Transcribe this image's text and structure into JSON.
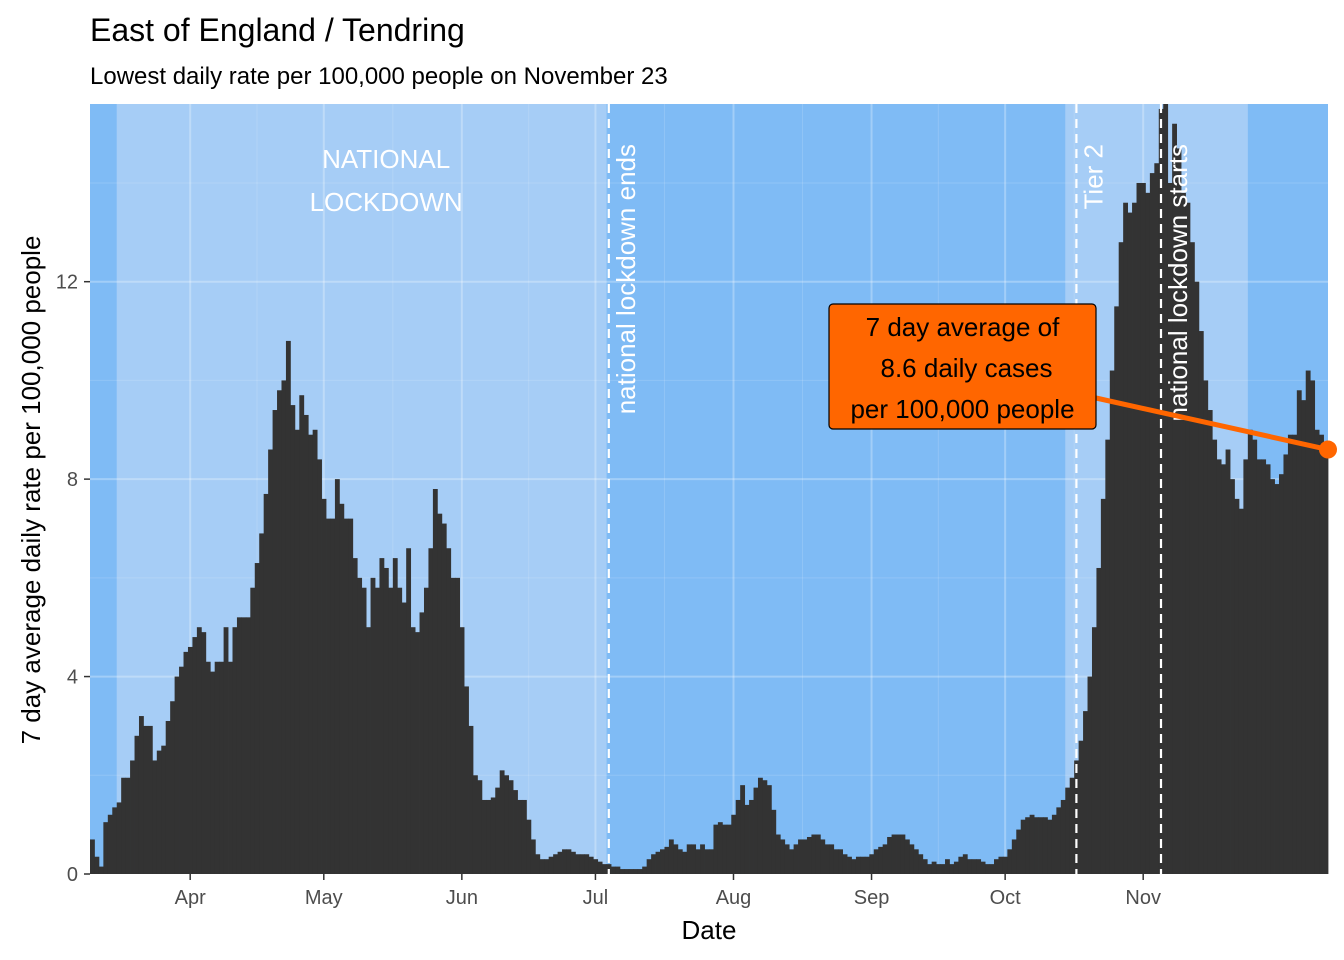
{
  "chart_data": {
    "type": "bar",
    "title": "East of England / Tendring",
    "subtitle": "Lowest daily rate per 100,000 people on November 23",
    "xlabel": "Date",
    "ylabel": "7 day average daily rate per 100,000 people",
    "x_start": "2020-03-10",
    "ylim": [
      0,
      15.6
    ],
    "y_ticks": [
      0,
      4,
      8,
      12
    ],
    "y_tick_labels": [
      "0",
      "4",
      "8",
      "12"
    ],
    "x_ticks": [
      {
        "date": "2020-04-01",
        "label": "Apr"
      },
      {
        "date": "2020-05-01",
        "label": "May"
      },
      {
        "date": "2020-06-01",
        "label": "Jun"
      },
      {
        "date": "2020-07-01",
        "label": "Jul"
      },
      {
        "date": "2020-08-01",
        "label": "Aug"
      },
      {
        "date": "2020-09-01",
        "label": "Sep"
      },
      {
        "date": "2020-10-01",
        "label": "Oct"
      },
      {
        "date": "2020-11-01",
        "label": "Nov"
      }
    ],
    "bar_color": "#333333",
    "background_color": "#7fbbf5",
    "lockdown_shade_color": "#a6cdf6",
    "shaded_periods": [
      {
        "start": "2020-03-16",
        "end": "2020-07-03"
      },
      {
        "start": "2020-10-15",
        "end": "2020-11-24"
      }
    ],
    "vlines": [
      {
        "date": "2020-07-04",
        "label": "national lockdown ends"
      },
      {
        "date": "2020-10-17",
        "label": "Tier 2"
      },
      {
        "date": "2020-11-05",
        "label": "national lockdown starts"
      }
    ],
    "region_label": {
      "lines": [
        "NATIONAL",
        "LOCKDOWN"
      ],
      "date": "2020-05-15",
      "y": 14.3
    },
    "callout": {
      "lines": [
        "7 day average of",
        "8.6 daily cases",
        "per 100,000 people"
      ],
      "point_date": "2020-11-23",
      "point_value": 8.6,
      "color": "#ff6600"
    },
    "values": [
      0.7,
      0.35,
      0.15,
      1.05,
      1.2,
      1.35,
      1.45,
      1.95,
      1.95,
      2.3,
      2.8,
      3.2,
      3.0,
      3.0,
      2.3,
      2.5,
      2.6,
      3.1,
      3.5,
      4.0,
      4.2,
      4.5,
      4.6,
      4.8,
      5.0,
      4.9,
      4.3,
      4.1,
      4.3,
      4.3,
      5.0,
      4.3,
      5.0,
      5.2,
      5.2,
      5.2,
      5.8,
      6.3,
      6.9,
      7.7,
      8.6,
      9.4,
      9.8,
      10.0,
      10.8,
      9.5,
      9.0,
      9.7,
      9.3,
      8.9,
      9.0,
      8.4,
      7.6,
      7.2,
      7.2,
      8.0,
      7.5,
      7.2,
      7.2,
      6.4,
      6.0,
      5.8,
      5.0,
      6.0,
      5.8,
      6.4,
      6.2,
      5.8,
      6.4,
      5.8,
      5.5,
      6.6,
      5.0,
      4.9,
      5.3,
      5.8,
      6.6,
      7.8,
      7.3,
      7.1,
      6.6,
      6.0,
      6.0,
      5.0,
      3.8,
      3.0,
      2.0,
      1.9,
      1.5,
      1.5,
      1.55,
      1.75,
      2.1,
      2.0,
      1.9,
      1.7,
      1.5,
      1.5,
      1.1,
      0.7,
      0.4,
      0.3,
      0.3,
      0.35,
      0.4,
      0.45,
      0.5,
      0.5,
      0.45,
      0.4,
      0.4,
      0.4,
      0.35,
      0.3,
      0.25,
      0.2,
      0.2,
      0.15,
      0.15,
      0.1,
      0.1,
      0.1,
      0.1,
      0.1,
      0.15,
      0.3,
      0.4,
      0.45,
      0.5,
      0.55,
      0.7,
      0.6,
      0.5,
      0.45,
      0.6,
      0.6,
      0.5,
      0.6,
      0.5,
      0.5,
      1.0,
      1.05,
      1.0,
      1.0,
      1.2,
      1.5,
      1.8,
      1.4,
      1.5,
      1.75,
      1.95,
      1.9,
      1.8,
      1.3,
      0.8,
      0.7,
      0.6,
      0.5,
      0.6,
      0.7,
      0.7,
      0.75,
      0.8,
      0.8,
      0.7,
      0.6,
      0.6,
      0.5,
      0.5,
      0.4,
      0.35,
      0.3,
      0.35,
      0.35,
      0.35,
      0.4,
      0.5,
      0.55,
      0.6,
      0.75,
      0.8,
      0.8,
      0.8,
      0.7,
      0.6,
      0.5,
      0.4,
      0.3,
      0.2,
      0.25,
      0.2,
      0.2,
      0.3,
      0.2,
      0.25,
      0.35,
      0.4,
      0.3,
      0.3,
      0.3,
      0.25,
      0.2,
      0.2,
      0.3,
      0.35,
      0.35,
      0.5,
      0.7,
      0.9,
      1.1,
      1.15,
      1.2,
      1.15,
      1.15,
      1.15,
      1.1,
      1.2,
      1.35,
      1.5,
      1.75,
      1.95,
      2.3,
      2.7,
      3.3,
      4.0,
      5.0,
      6.2,
      7.6,
      8.8,
      10.2,
      11.5,
      12.8,
      13.6,
      13.4,
      13.6,
      14.0,
      14.0,
      13.8,
      14.2,
      14.4,
      15.5,
      16.5,
      14.0,
      15.2,
      14.7,
      13.8,
      13.6,
      12.8,
      12.0,
      11.0,
      10.0,
      9.4,
      8.8,
      8.4,
      8.3,
      8.6,
      8.0,
      7.6,
      7.4,
      8.4,
      9.0,
      8.8,
      8.4,
      8.4,
      8.3,
      8.0,
      7.9,
      8.1,
      8.5,
      8.9,
      8.9,
      9.8,
      9.6,
      10.2,
      10.0,
      9.0,
      8.9,
      8.6
    ]
  }
}
